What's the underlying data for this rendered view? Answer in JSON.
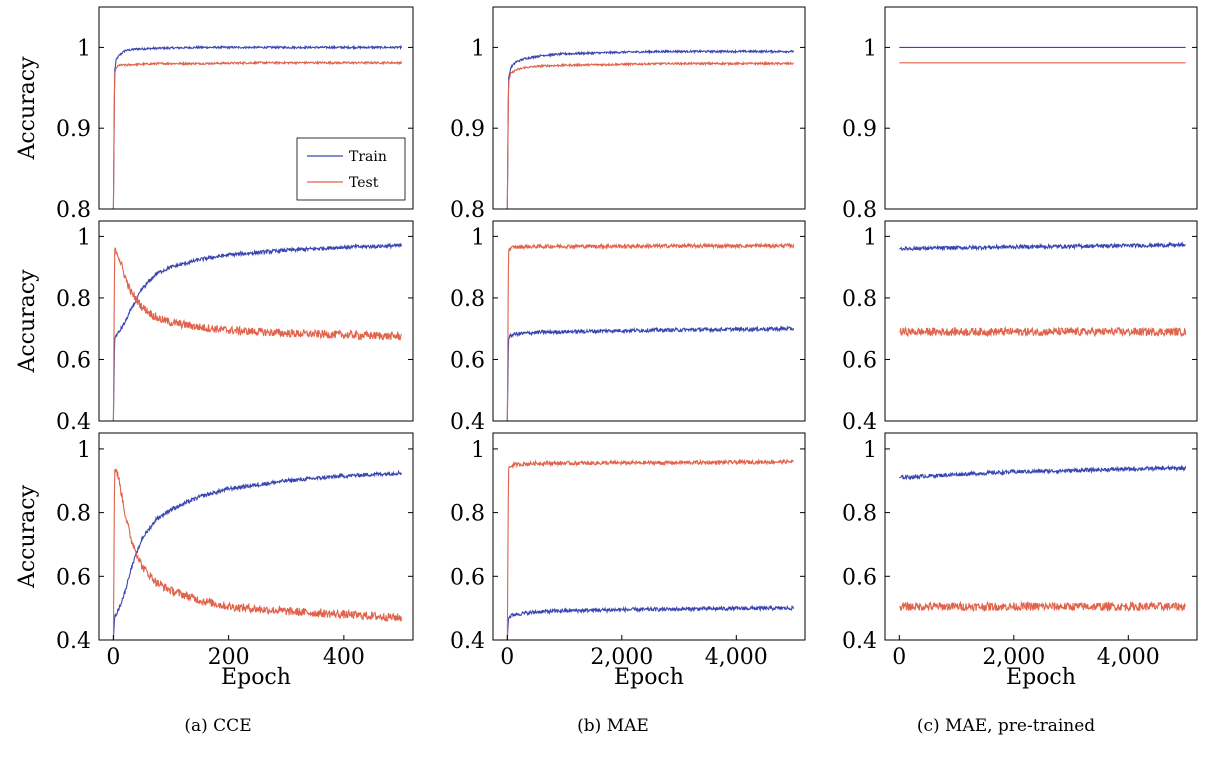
{
  "colors": {
    "train": "#3a46b0",
    "test": "#e0634b"
  },
  "captions": [
    "(a) CCE",
    "(b) MAE",
    "(c) MAE, pre-trained"
  ],
  "chart_data": [
    {
      "type": "line",
      "column": "(a) CCE",
      "ylabel": "Accuracy",
      "xlabel": "",
      "ylim": [
        0.8,
        1.05
      ],
      "xlim": [
        -25,
        520
      ],
      "yticks": [
        "0.8",
        "0.9",
        "1"
      ],
      "xticks": [],
      "legend": {
        "position": "lower-right",
        "entries": [
          "Train",
          "Test"
        ]
      },
      "series": [
        {
          "name": "Train",
          "x": [
            0,
            2,
            5,
            10,
            20,
            40,
            80,
            150,
            250,
            500
          ],
          "y": [
            0.8,
            0.97,
            0.985,
            0.99,
            0.996,
            0.998,
            0.999,
            1.0,
            1.0,
            1.0
          ]
        },
        {
          "name": "Test",
          "x": [
            0,
            2,
            5,
            10,
            20,
            40,
            80,
            150,
            250,
            500
          ],
          "y": [
            0.8,
            0.965,
            0.975,
            0.978,
            0.978,
            0.979,
            0.98,
            0.98,
            0.981,
            0.981
          ]
        }
      ]
    },
    {
      "type": "line",
      "column": "(b) MAE",
      "ylabel": "",
      "xlabel": "",
      "ylim": [
        0.8,
        1.05
      ],
      "xlim": [
        -250,
        5200
      ],
      "yticks": [
        "0.8",
        "0.9",
        "1"
      ],
      "xticks": [],
      "series": [
        {
          "name": "Train",
          "x": [
            0,
            20,
            60,
            150,
            300,
            600,
            1000,
            2000,
            2800,
            5000
          ],
          "y": [
            0.8,
            0.96,
            0.975,
            0.982,
            0.986,
            0.99,
            0.992,
            0.994,
            0.995,
            0.995
          ]
        },
        {
          "name": "Test",
          "x": [
            0,
            20,
            60,
            150,
            300,
            600,
            1000,
            2000,
            2800,
            5000
          ],
          "y": [
            0.8,
            0.955,
            0.968,
            0.972,
            0.975,
            0.977,
            0.978,
            0.979,
            0.98,
            0.98
          ]
        }
      ]
    },
    {
      "type": "line",
      "column": "(c) MAE, pre-trained",
      "ylabel": "",
      "xlabel": "",
      "ylim": [
        0.8,
        1.05
      ],
      "xlim": [
        -250,
        5200
      ],
      "yticks": [
        "0.8",
        "0.9",
        "1"
      ],
      "xticks": [],
      "series": [
        {
          "name": "Train",
          "x": [
            0,
            5000
          ],
          "y": [
            1.0,
            1.0
          ]
        },
        {
          "name": "Test",
          "x": [
            0,
            5000
          ],
          "y": [
            0.981,
            0.981
          ]
        }
      ]
    },
    {
      "type": "line",
      "column": "(a) CCE",
      "ylabel": "Accuracy",
      "xlabel": "",
      "ylim": [
        0.4,
        1.05
      ],
      "xlim": [
        -25,
        520
      ],
      "yticks": [
        "0.4",
        "0.6",
        "0.8",
        "1"
      ],
      "xticks": [],
      "series": [
        {
          "name": "Train",
          "x": [
            0,
            2,
            10,
            20,
            30,
            50,
            75,
            100,
            150,
            200,
            300,
            400,
            500
          ],
          "y": [
            0.4,
            0.67,
            0.69,
            0.72,
            0.76,
            0.83,
            0.88,
            0.9,
            0.925,
            0.94,
            0.955,
            0.965,
            0.97
          ]
        },
        {
          "name": "Test",
          "x": [
            0,
            2,
            5,
            10,
            20,
            30,
            50,
            75,
            100,
            150,
            200,
            300,
            400,
            500
          ],
          "y": [
            0.4,
            0.95,
            0.955,
            0.93,
            0.87,
            0.82,
            0.77,
            0.735,
            0.72,
            0.705,
            0.695,
            0.685,
            0.68,
            0.675
          ]
        }
      ]
    },
    {
      "type": "line",
      "column": "(b) MAE",
      "ylabel": "",
      "xlabel": "",
      "ylim": [
        0.4,
        1.05
      ],
      "xlim": [
        -250,
        5200
      ],
      "yticks": [
        "0.4",
        "0.6",
        "0.8",
        "1"
      ],
      "xticks": [],
      "series": [
        {
          "name": "Train",
          "x": [
            0,
            20,
            100,
            500,
            1000,
            2000,
            3000,
            4000,
            5000
          ],
          "y": [
            0.4,
            0.67,
            0.682,
            0.688,
            0.69,
            0.694,
            0.696,
            0.698,
            0.7
          ]
        },
        {
          "name": "Test",
          "x": [
            0,
            20,
            100,
            500,
            1000,
            2000,
            3000,
            4000,
            5000
          ],
          "y": [
            0.4,
            0.955,
            0.965,
            0.967,
            0.968,
            0.968,
            0.969,
            0.969,
            0.97
          ]
        }
      ]
    },
    {
      "type": "line",
      "column": "(c) MAE, pre-trained",
      "ylabel": "",
      "xlabel": "",
      "ylim": [
        0.4,
        1.05
      ],
      "xlim": [
        -250,
        5200
      ],
      "yticks": [
        "0.4",
        "0.6",
        "0.8",
        "1"
      ],
      "xticks": [],
      "series": [
        {
          "name": "Train",
          "x": [
            0,
            1000,
            2000,
            3000,
            4000,
            5000
          ],
          "y": [
            0.96,
            0.963,
            0.966,
            0.968,
            0.97,
            0.972
          ]
        },
        {
          "name": "Test",
          "x": [
            0,
            1000,
            2000,
            3000,
            4000,
            5000
          ],
          "y": [
            0.69,
            0.69,
            0.69,
            0.69,
            0.69,
            0.69
          ]
        }
      ]
    },
    {
      "type": "line",
      "column": "(a) CCE",
      "ylabel": "Accuracy",
      "xlabel": "Epoch",
      "ylim": [
        0.4,
        1.05
      ],
      "xlim": [
        -25,
        520
      ],
      "yticks": [
        "0.4",
        "0.6",
        "0.8",
        "1"
      ],
      "xticks": [
        0,
        200,
        400
      ],
      "xticklabels": [
        "0",
        "200",
        "400"
      ],
      "series": [
        {
          "name": "Train",
          "x": [
            0,
            2,
            10,
            20,
            30,
            50,
            75,
            100,
            150,
            200,
            300,
            400,
            500
          ],
          "y": [
            0.4,
            0.47,
            0.5,
            0.55,
            0.62,
            0.72,
            0.78,
            0.81,
            0.85,
            0.875,
            0.9,
            0.915,
            0.925
          ]
        },
        {
          "name": "Test",
          "x": [
            0,
            2,
            5,
            10,
            20,
            30,
            50,
            75,
            100,
            150,
            200,
            300,
            400,
            500
          ],
          "y": [
            0.4,
            0.93,
            0.935,
            0.9,
            0.8,
            0.72,
            0.63,
            0.58,
            0.555,
            0.525,
            0.505,
            0.49,
            0.48,
            0.47
          ]
        }
      ]
    },
    {
      "type": "line",
      "column": "(b) MAE",
      "ylabel": "",
      "xlabel": "Epoch",
      "ylim": [
        0.4,
        1.05
      ],
      "xlim": [
        -250,
        5200
      ],
      "yticks": [
        "0.4",
        "0.6",
        "0.8",
        "1"
      ],
      "xticks": [
        0,
        2000,
        4000
      ],
      "xticklabels": [
        "0",
        "2,000",
        "4,000"
      ],
      "series": [
        {
          "name": "Train",
          "x": [
            0,
            20,
            100,
            500,
            1000,
            2000,
            3000,
            4000,
            5000
          ],
          "y": [
            0.4,
            0.47,
            0.48,
            0.488,
            0.492,
            0.495,
            0.497,
            0.499,
            0.5
          ]
        },
        {
          "name": "Test",
          "x": [
            0,
            20,
            100,
            500,
            1000,
            2000,
            3000,
            4000,
            5000
          ],
          "y": [
            0.4,
            0.94,
            0.95,
            0.955,
            0.955,
            0.956,
            0.957,
            0.958,
            0.96
          ]
        }
      ]
    },
    {
      "type": "line",
      "column": "(c) MAE, pre-trained",
      "ylabel": "",
      "xlabel": "Epoch",
      "ylim": [
        0.4,
        1.05
      ],
      "xlim": [
        -250,
        5200
      ],
      "yticks": [
        "0.4",
        "0.6",
        "0.8",
        "1"
      ],
      "xticks": [
        0,
        2000,
        4000
      ],
      "xticklabels": [
        "0",
        "2,000",
        "4,000"
      ],
      "series": [
        {
          "name": "Train",
          "x": [
            0,
            1000,
            2000,
            3000,
            4000,
            5000
          ],
          "y": [
            0.91,
            0.92,
            0.928,
            0.932,
            0.937,
            0.94
          ]
        },
        {
          "name": "Test",
          "x": [
            0,
            1000,
            2000,
            3000,
            4000,
            5000
          ],
          "y": [
            0.505,
            0.505,
            0.505,
            0.505,
            0.505,
            0.505
          ]
        }
      ]
    }
  ]
}
